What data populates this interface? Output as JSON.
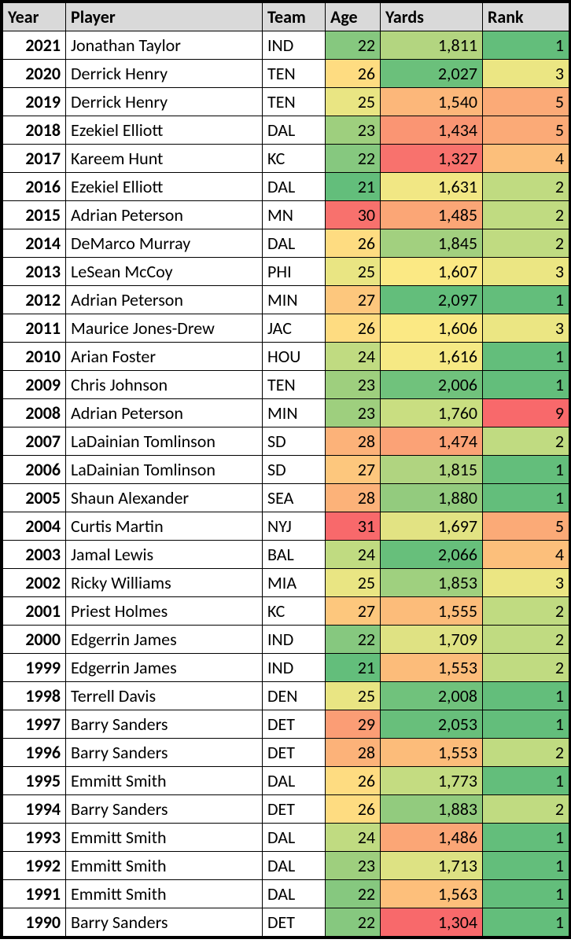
{
  "table": {
    "columns": [
      "Year",
      "Player",
      "Team",
      "Age",
      "Yards",
      "Rank"
    ],
    "header_bg": "#d9d9d9",
    "border_color": "#000000",
    "font_family": "Calibri",
    "font_size": 22,
    "rows": [
      {
        "year": "2021",
        "player": "Jonathan Taylor",
        "team": "IND",
        "age": "22",
        "yards": "1,811",
        "rank": "1",
        "age_bg": "#86c87f",
        "yards_bg": "#b3d580",
        "rank_bg": "#63be7b"
      },
      {
        "year": "2020",
        "player": "Derrick Henry",
        "team": "TEN",
        "age": "26",
        "yards": "2,027",
        "rank": "3",
        "age_bg": "#fedc81",
        "yards_bg": "#6bc07b",
        "rank_bg": "#ebe683"
      },
      {
        "year": "2019",
        "player": "Derrick Henry",
        "team": "TEN",
        "age": "25",
        "yards": "1,540",
        "rank": "5",
        "age_bg": "#e9e583",
        "yards_bg": "#fcb77a",
        "rank_bg": "#fbaa77"
      },
      {
        "year": "2018",
        "player": "Ezekiel Elliott",
        "team": "DAL",
        "age": "23",
        "yards": "1,434",
        "rank": "5",
        "age_bg": "#9ecf7e",
        "yards_bg": "#fa9573",
        "rank_bg": "#fbaa77"
      },
      {
        "year": "2017",
        "player": "Kareem Hunt",
        "team": "KC",
        "age": "22",
        "yards": "1,327",
        "rank": "4",
        "age_bg": "#86c87f",
        "yards_bg": "#f8726d",
        "rank_bg": "#fcbf7b"
      },
      {
        "year": "2016",
        "player": "Ezekiel Elliott",
        "team": "DAL",
        "age": "21",
        "yards": "1,631",
        "rank": "2",
        "age_bg": "#63be7b",
        "yards_bg": "#f1e784",
        "rank_bg": "#c0db81"
      },
      {
        "year": "2015",
        "player": "Adrian Peterson",
        "team": "MN",
        "age": "30",
        "yards": "1,485",
        "rank": "2",
        "age_bg": "#f8716d",
        "yards_bg": "#fba676",
        "rank_bg": "#c0db81"
      },
      {
        "year": "2014",
        "player": "DeMarco Murray",
        "team": "DAL",
        "age": "26",
        "yards": "1,845",
        "rank": "2",
        "age_bg": "#fedc81",
        "yards_bg": "#a2d07f",
        "rank_bg": "#c0db81"
      },
      {
        "year": "2013",
        "player": "LeSean McCoy",
        "team": "PHI",
        "age": "25",
        "yards": "1,607",
        "rank": "3",
        "age_bg": "#e9e583",
        "yards_bg": "#fbe984",
        "rank_bg": "#ebe683"
      },
      {
        "year": "2012",
        "player": "Adrian Peterson",
        "team": "MIN",
        "age": "27",
        "yards": "2,097",
        "rank": "1",
        "age_bg": "#fdc77d",
        "yards_bg": "#63be7b",
        "rank_bg": "#63be7b"
      },
      {
        "year": "2011",
        "player": "Maurice Jones-Drew",
        "team": "JAC",
        "age": "26",
        "yards": "1,606",
        "rank": "3",
        "age_bg": "#fedc81",
        "yards_bg": "#fbe984",
        "rank_bg": "#ebe683"
      },
      {
        "year": "2010",
        "player": "Arian Foster",
        "team": "HOU",
        "age": "24",
        "yards": "1,616",
        "rank": "1",
        "age_bg": "#c0db81",
        "yards_bg": "#f6e984",
        "rank_bg": "#63be7b"
      },
      {
        "year": "2009",
        "player": "Chris Johnson",
        "team": "TEN",
        "age": "23",
        "yards": "2,006",
        "rank": "1",
        "age_bg": "#9ecf7e",
        "yards_bg": "#70c27c",
        "rank_bg": "#63be7b"
      },
      {
        "year": "2008",
        "player": "Adrian Peterson",
        "team": "MIN",
        "age": "23",
        "yards": "1,760",
        "rank": "9",
        "age_bg": "#9ecf7e",
        "yards_bg": "#c9de81",
        "rank_bg": "#f8696b"
      },
      {
        "year": "2007",
        "player": "LaDainian Tomlinson",
        "team": "SD",
        "age": "28",
        "yards": "1,474",
        "rank": "2",
        "age_bg": "#fcb279",
        "yards_bg": "#fba276",
        "rank_bg": "#c0db81"
      },
      {
        "year": "2006",
        "player": "LaDainian Tomlinson",
        "team": "SD",
        "age": "27",
        "yards": "1,815",
        "rank": "1",
        "age_bg": "#fdc77d",
        "yards_bg": "#b0d480",
        "rank_bg": "#63be7b"
      },
      {
        "year": "2005",
        "player": "Shaun Alexander",
        "team": "SEA",
        "age": "28",
        "yards": "1,880",
        "rank": "1",
        "age_bg": "#fcb279",
        "yards_bg": "#93cb7e",
        "rank_bg": "#63be7b"
      },
      {
        "year": "2004",
        "player": "Curtis Martin",
        "team": "NYJ",
        "age": "31",
        "yards": "1,697",
        "rank": "5",
        "age_bg": "#f8696b",
        "yards_bg": "#e2e383",
        "rank_bg": "#fbaa77"
      },
      {
        "year": "2003",
        "player": "Jamal Lewis",
        "team": "BAL",
        "age": "24",
        "yards": "2,066",
        "rank": "4",
        "age_bg": "#c0db81",
        "yards_bg": "#67bf7b",
        "rank_bg": "#fcbf7b"
      },
      {
        "year": "2002",
        "player": "Ricky Williams",
        "team": "MIA",
        "age": "25",
        "yards": "1,853",
        "rank": "3",
        "age_bg": "#e9e583",
        "yards_bg": "#9fd07f",
        "rank_bg": "#ebe683"
      },
      {
        "year": "2001",
        "player": "Priest Holmes",
        "team": "KC",
        "age": "27",
        "yards": "1,555",
        "rank": "2",
        "age_bg": "#fdc77d",
        "yards_bg": "#fcbc7a",
        "rank_bg": "#c0db81"
      },
      {
        "year": "2000",
        "player": "Edgerrin James",
        "team": "IND",
        "age": "22",
        "yards": "1,709",
        "rank": "2",
        "age_bg": "#86c87f",
        "yards_bg": "#dfe283",
        "rank_bg": "#c0db81"
      },
      {
        "year": "1999",
        "player": "Edgerrin James",
        "team": "IND",
        "age": "21",
        "yards": "1,553",
        "rank": "2",
        "age_bg": "#63be7b",
        "yards_bg": "#fcbc7a",
        "rank_bg": "#c0db81"
      },
      {
        "year": "1998",
        "player": "Terrell Davis",
        "team": "DEN",
        "age": "25",
        "yards": "2,008",
        "rank": "1",
        "age_bg": "#e9e583",
        "yards_bg": "#70c27c",
        "rank_bg": "#63be7b"
      },
      {
        "year": "1997",
        "player": "Barry Sanders",
        "team": "DET",
        "age": "29",
        "yards": "2,053",
        "rank": "1",
        "age_bg": "#fb9d75",
        "yards_bg": "#68bf7b",
        "rank_bg": "#63be7b"
      },
      {
        "year": "1996",
        "player": "Barry Sanders",
        "team": "DET",
        "age": "28",
        "yards": "1,553",
        "rank": "2",
        "age_bg": "#fcb279",
        "yards_bg": "#fcbc7a",
        "rank_bg": "#c0db81"
      },
      {
        "year": "1995",
        "player": "Emmitt Smith",
        "team": "DAL",
        "age": "26",
        "yards": "1,773",
        "rank": "1",
        "age_bg": "#fedc81",
        "yards_bg": "#c4dc81",
        "rank_bg": "#63be7b"
      },
      {
        "year": "1994",
        "player": "Barry Sanders",
        "team": "DET",
        "age": "26",
        "yards": "1,883",
        "rank": "2",
        "age_bg": "#fedc81",
        "yards_bg": "#92cb7e",
        "rank_bg": "#c0db81"
      },
      {
        "year": "1993",
        "player": "Emmitt Smith",
        "team": "DAL",
        "age": "24",
        "yards": "1,486",
        "rank": "1",
        "age_bg": "#c0db81",
        "yards_bg": "#fba676",
        "rank_bg": "#63be7b"
      },
      {
        "year": "1992",
        "player": "Emmitt Smith",
        "team": "DAL",
        "age": "23",
        "yards": "1,713",
        "rank": "1",
        "age_bg": "#9ecf7e",
        "yards_bg": "#dde283",
        "rank_bg": "#63be7b"
      },
      {
        "year": "1991",
        "player": "Emmitt Smith",
        "team": "DAL",
        "age": "22",
        "yards": "1,563",
        "rank": "1",
        "age_bg": "#86c87f",
        "yards_bg": "#fdbf7b",
        "rank_bg": "#63be7b"
      },
      {
        "year": "1990",
        "player": "Barry Sanders",
        "team": "DET",
        "age": "22",
        "yards": "1,304",
        "rank": "1",
        "age_bg": "#86c87f",
        "yards_bg": "#f8696b",
        "rank_bg": "#63be7b"
      }
    ]
  }
}
